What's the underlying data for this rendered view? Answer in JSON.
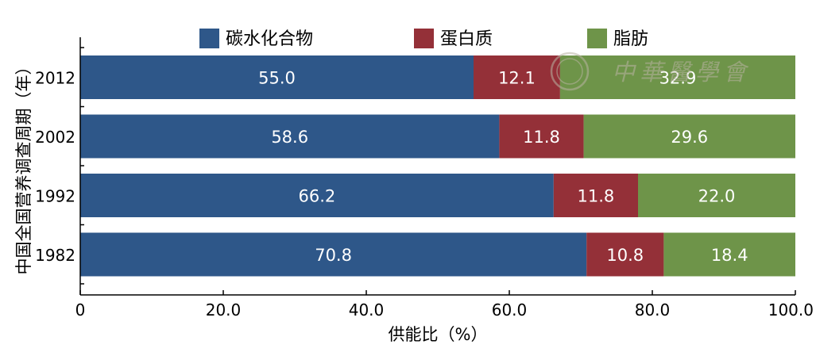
{
  "chart_data": {
    "type": "bar",
    "orientation": "horizontal",
    "stacked": true,
    "xlabel": "供能比（%）",
    "ylabel": "中国全国营养调查周期（年）",
    "xlim": [
      0,
      100
    ],
    "xticks": [
      "0",
      "20.0",
      "40.0",
      "60.0",
      "80.0",
      "100.0"
    ],
    "legend_position": "top",
    "categories": [
      "2012",
      "2002",
      "1992",
      "1982"
    ],
    "series": [
      {
        "name": "碳水化合物",
        "color": "#2E5789",
        "values": [
          55.0,
          58.6,
          66.2,
          70.8
        ]
      },
      {
        "name": "蛋白质",
        "color": "#943038",
        "values": [
          12.1,
          11.8,
          11.8,
          10.8
        ]
      },
      {
        "name": "脂肪",
        "color": "#6E9449",
        "values": [
          32.9,
          29.6,
          22.0,
          18.4
        ]
      }
    ],
    "data_label_color": "#ffffff",
    "watermark_text": "中華醫學會",
    "grid": false
  }
}
